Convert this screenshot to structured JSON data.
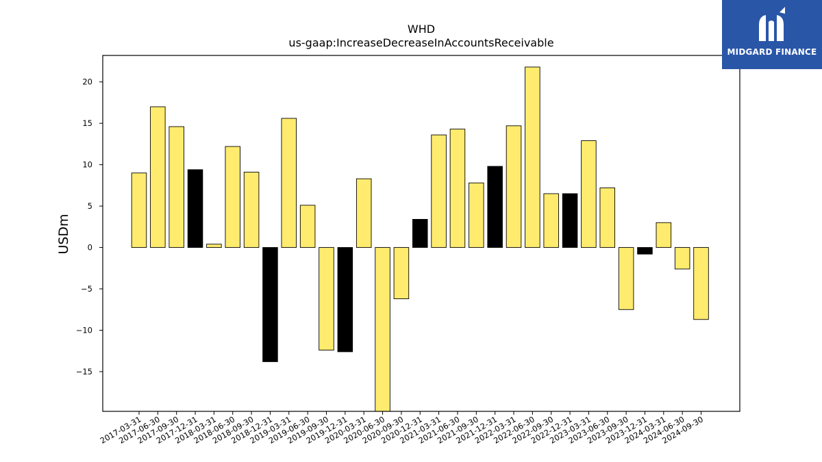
{
  "logo": {
    "text": "MIDGARD FINANCE",
    "icon": "midgard-logo-icon",
    "background": "#2a56a8"
  },
  "chart_data": {
    "type": "bar",
    "title": "WHD",
    "subtitle": "us-gaap:IncreaseDecreaseInAccountsReceivable",
    "ylabel": "USDm",
    "xlabel": "",
    "ylim": [
      -19.8,
      23.2
    ],
    "yticks": [
      -15,
      -10,
      -5,
      0,
      5,
      10,
      15,
      20
    ],
    "grid": false,
    "colors": {
      "default": "#ffeb6e",
      "highlight": "#000000",
      "edge": "#000000"
    },
    "categories": [
      "2017-03-31",
      "2017-06-30",
      "2017-09-30",
      "2017-12-31",
      "2018-03-31",
      "2018-06-30",
      "2018-09-30",
      "2018-12-31",
      "2019-03-31",
      "2019-06-30",
      "2019-09-30",
      "2019-12-31",
      "2020-03-31",
      "2020-06-30",
      "2020-09-30",
      "2020-12-31",
      "2021-03-31",
      "2021-06-30",
      "2021-09-30",
      "2021-12-31",
      "2022-03-31",
      "2022-06-30",
      "2022-09-30",
      "2022-12-31",
      "2023-03-31",
      "2023-06-30",
      "2023-09-30",
      "2023-12-31",
      "2024-03-31",
      "2024-06-30",
      "2024-09-30"
    ],
    "values": [
      9.0,
      17.0,
      14.6,
      9.4,
      0.4,
      12.2,
      9.1,
      -13.8,
      15.6,
      5.1,
      -12.4,
      -12.6,
      8.3,
      -20.0,
      -6.2,
      3.4,
      13.6,
      14.3,
      7.8,
      9.8,
      14.7,
      21.8,
      6.5,
      6.5,
      12.9,
      7.2,
      -7.5,
      -0.8,
      3.0,
      -2.6,
      -8.7
    ],
    "highlight": [
      false,
      false,
      false,
      true,
      false,
      false,
      false,
      true,
      false,
      false,
      false,
      true,
      false,
      false,
      false,
      true,
      false,
      false,
      false,
      true,
      false,
      false,
      false,
      true,
      false,
      false,
      false,
      true,
      false,
      false,
      false
    ]
  }
}
